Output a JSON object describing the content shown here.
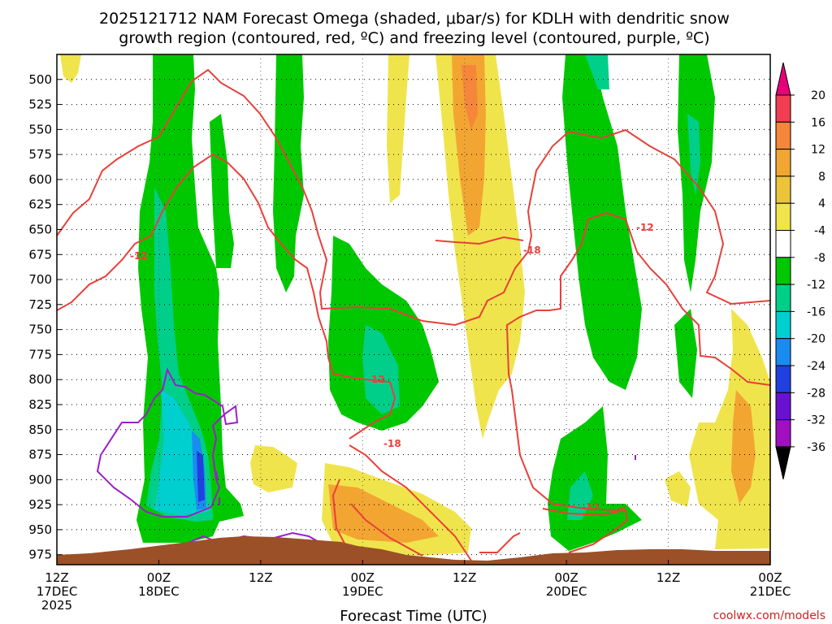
{
  "chart_data": {
    "type": "heatmap",
    "title_line1": "2025121712 NAM Forecast Omega (shaded, μbar/s) for KDLH with dendritic snow",
    "title_line2": "growth region (contoured, red, ºC) and freezing level (contoured, purple, ºC)",
    "xlabel": "Forecast Time (UTC)",
    "credit": "coolwx.com/models",
    "y_ticks": [
      "500",
      "525",
      "550",
      "575",
      "600",
      "625",
      "650",
      "675",
      "700",
      "725",
      "750",
      "775",
      "800",
      "825",
      "850",
      "875",
      "900",
      "925",
      "950",
      "975"
    ],
    "y_range_mb": [
      475,
      985
    ],
    "x_range_hours": [
      0,
      84
    ],
    "x_ticks": [
      {
        "hour": 0,
        "line1": "12Z",
        "line2": "17DEC",
        "line3": "2025"
      },
      {
        "hour": 12,
        "line1": "00Z",
        "line2": "18DEC",
        "line3": ""
      },
      {
        "hour": 24,
        "line1": "12Z",
        "line2": "",
        "line3": ""
      },
      {
        "hour": 36,
        "line1": "00Z",
        "line2": "19DEC",
        "line3": ""
      },
      {
        "hour": 48,
        "line1": "12Z",
        "line2": "",
        "line3": ""
      },
      {
        "hour": 60,
        "line1": "00Z",
        "line2": "20DEC",
        "line3": ""
      },
      {
        "hour": 72,
        "line1": "12Z",
        "line2": "",
        "line3": ""
      },
      {
        "hour": 84,
        "line1": "00Z",
        "line2": "21DEC",
        "line3": ""
      }
    ],
    "colorbar": {
      "levels": [
        "20",
        "16",
        "12",
        "8",
        "4",
        "-4",
        "-8",
        "-12",
        "-16",
        "-20",
        "-24",
        "-28",
        "-32",
        "-36"
      ],
      "colors": [
        "#f23d53",
        "#f5863a",
        "#f3a532",
        "#ebc43a",
        "#f0e44c",
        "#ffffff",
        "#00c800",
        "#00cf8a",
        "#00cfd0",
        "#1a8cf0",
        "#2040e0",
        "#6a10d0",
        "#a010c0",
        "#a0a0a0",
        "#000000"
      ],
      "top_arrow_color": "#e8007a",
      "bottom_arrow_color": "#000000"
    },
    "contour_labels": [
      "-12",
      "-18",
      "-12",
      "-12",
      "-18",
      "-18",
      "-12",
      "-12"
    ],
    "series": [
      {
        "name": "omega_upward_strong",
        "description_color": "#00c800"
      },
      {
        "name": "dendritic_growth_region",
        "color": "#e8403a",
        "values": [
          -12,
          -18
        ]
      },
      {
        "name": "freezing_level",
        "color": "#9a20c8"
      }
    ]
  }
}
